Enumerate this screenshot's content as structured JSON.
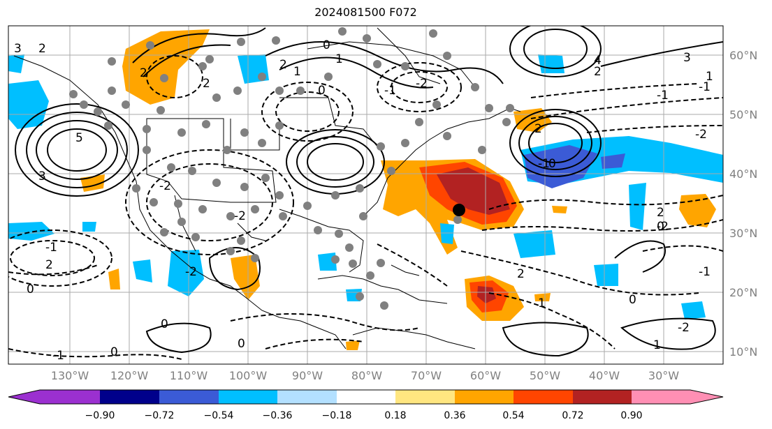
{
  "title": "2024081500 F072",
  "map": {
    "lat_labels": [
      "60°N",
      "50°N",
      "40°N",
      "30°N",
      "20°N",
      "10°N"
    ],
    "lon_labels": [
      "130°W",
      "120°W",
      "110°W",
      "100°W",
      "90°W",
      "80°W",
      "70°W",
      "60°W",
      "50°W",
      "40°W",
      "30°W"
    ],
    "contour_labels": [
      "3",
      "2",
      "5",
      "3",
      "2",
      "1",
      "0",
      "-1",
      "-2",
      "2",
      "1",
      "0",
      "2",
      "2",
      "0",
      "-1",
      "2",
      "4",
      "3",
      "-1",
      "-2",
      "-1",
      "2",
      "0",
      "-2",
      "-1",
      "-2",
      "0",
      "2",
      "2",
      "0",
      "1",
      "-2",
      "1",
      "1",
      "-1",
      "0",
      "-1",
      "-2",
      "0",
      "0",
      "-2"
    ]
  },
  "colorbar": {
    "ticks": [
      "−0.90",
      "−0.72",
      "−0.54",
      "−0.36",
      "−0.18",
      "0.18",
      "0.36",
      "0.54",
      "0.72",
      "0.90"
    ],
    "colors": [
      "#6b0080",
      "#00008b",
      "#3b5bd6",
      "#00bfff",
      "#b3e0ff",
      "#ffffff",
      "#ffe680",
      "#ffa500",
      "#ff4500",
      "#b22222",
      "#ff8fb4"
    ],
    "under_color": "#9b30d0",
    "over_color": "#ff8fb4"
  }
}
